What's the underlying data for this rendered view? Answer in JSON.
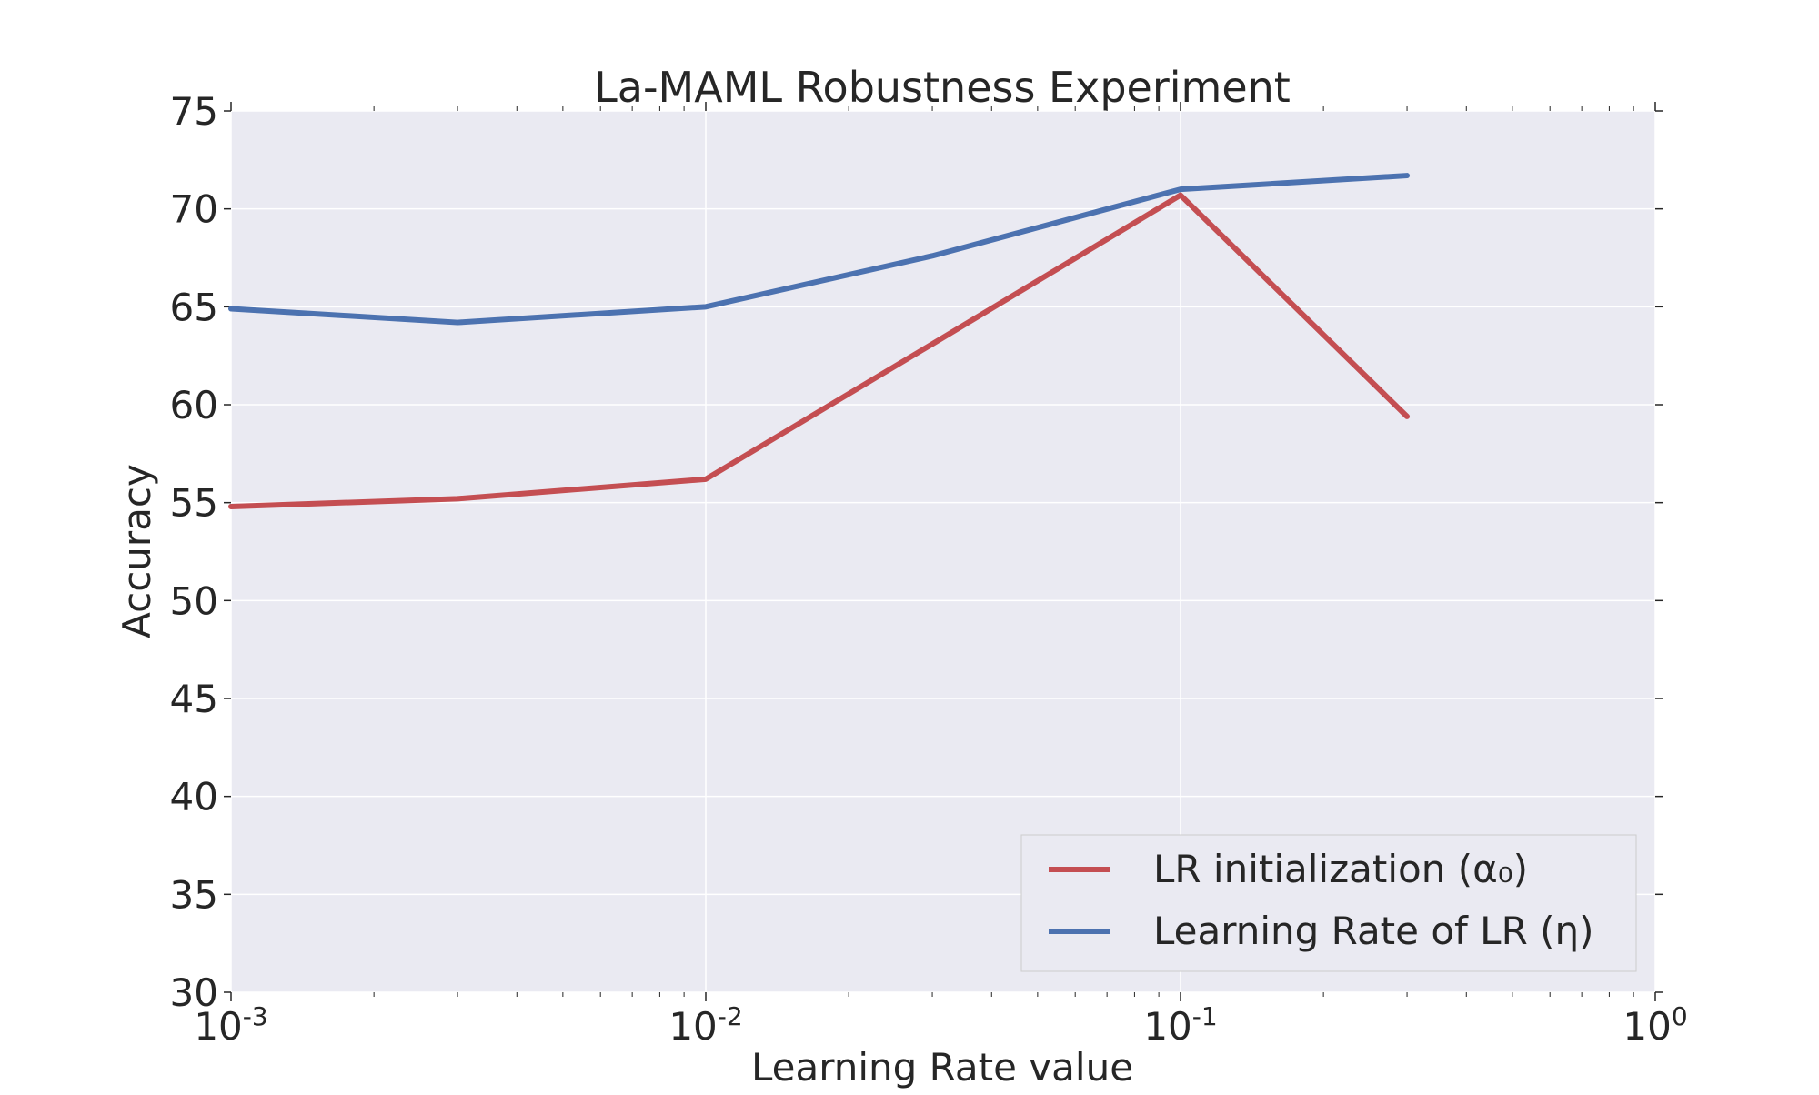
{
  "chart_data": {
    "type": "line",
    "title": "La-MAML Robustness Experiment",
    "xlabel": "Learning Rate value",
    "ylabel": "Accuracy",
    "xscale": "log",
    "xlim": [
      0.001,
      1
    ],
    "ylim": [
      30,
      75
    ],
    "xticks": [
      {
        "base": "10",
        "exp": "-3",
        "value": 0.001
      },
      {
        "base": "10",
        "exp": "-2",
        "value": 0.01
      },
      {
        "base": "10",
        "exp": "-1",
        "value": 0.1
      },
      {
        "base": "10",
        "exp": "0",
        "value": 1
      }
    ],
    "yticks": [
      "30",
      "35",
      "40",
      "45",
      "50",
      "55",
      "60",
      "65",
      "70",
      "75"
    ],
    "grid": true,
    "legend_position": "lower-right",
    "background": "#EAEAF2",
    "x": [
      0.001,
      0.003,
      0.01,
      0.03,
      0.1,
      0.3
    ],
    "series": [
      {
        "name": "LR initialization (α₀)",
        "color": "#C44E52",
        "values": [
          54.8,
          55.2,
          56.2,
          63.1,
          70.7,
          59.4
        ]
      },
      {
        "name": "Learning Rate of LR (η)",
        "color": "#4C72B0",
        "values": [
          64.9,
          64.2,
          65.0,
          67.6,
          71.0,
          71.7
        ]
      }
    ]
  }
}
